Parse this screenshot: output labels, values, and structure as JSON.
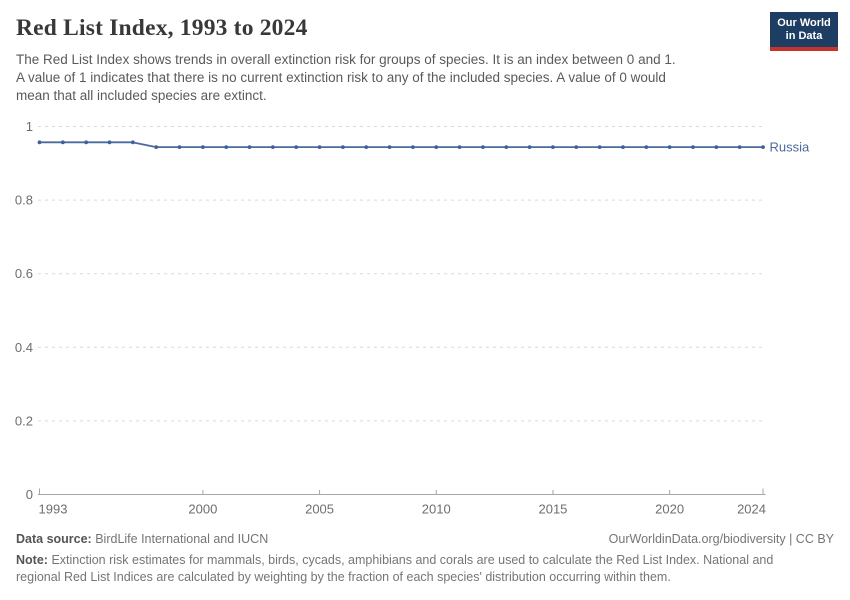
{
  "header": {
    "title": "Red List Index, 1993 to 2024",
    "subtitle_lines": [
      "The Red List Index shows trends in overall extinction risk for groups of species. It is an index between 0 and 1.",
      "A value of 1 indicates that there is no current extinction risk to any of the included species. A value of 0 would",
      "mean that all included species are extinct."
    ],
    "logo": {
      "line1": "Our World",
      "line2": "in Data",
      "bg_color": "#1d3d63",
      "accent_color": "#c5332d"
    }
  },
  "chart_data": {
    "type": "line",
    "title": "Red List Index, 1993 to 2024",
    "xlabel": "",
    "ylabel": "",
    "xlim": [
      1993,
      2024
    ],
    "ylim": [
      0,
      1
    ],
    "grid": "horizontal-dashed",
    "legend_position": "end-of-line-label",
    "x_ticks": [
      1993,
      2000,
      2005,
      2010,
      2015,
      2020,
      2024
    ],
    "y_ticks": [
      0,
      0.2,
      0.4,
      0.6,
      0.8,
      1
    ],
    "x": [
      1993,
      1994,
      1995,
      1996,
      1997,
      1998,
      1999,
      2000,
      2001,
      2002,
      2003,
      2004,
      2005,
      2006,
      2007,
      2008,
      2009,
      2010,
      2011,
      2012,
      2013,
      2014,
      2015,
      2016,
      2017,
      2018,
      2019,
      2020,
      2021,
      2022,
      2023,
      2024
    ],
    "series": [
      {
        "name": "Russia",
        "color": "#4c6a9c",
        "point_color": "#41619b",
        "values": [
          0.957,
          0.957,
          0.957,
          0.957,
          0.957,
          0.944,
          0.944,
          0.944,
          0.944,
          0.944,
          0.944,
          0.944,
          0.944,
          0.944,
          0.944,
          0.944,
          0.944,
          0.944,
          0.944,
          0.944,
          0.944,
          0.944,
          0.944,
          0.944,
          0.944,
          0.944,
          0.944,
          0.944,
          0.944,
          0.944,
          0.944,
          0.944
        ]
      }
    ],
    "colors": {
      "grid": "#d9d9d9",
      "axis": "#a6a6a6",
      "tick_label": "#6e6e6e"
    }
  },
  "footer": {
    "source_label": "Data source:",
    "source_value": "BirdLife International and IUCN",
    "attribution": "OurWorldinData.org/biodiversity | CC BY",
    "note_label": "Note:",
    "note_lines": [
      "Extinction risk estimates for mammals, birds, cycads, amphibians and corals are used to calculate the Red List Index. National and",
      "regional Red List Indices are calculated by weighting by the fraction of each species' distribution occurring within them."
    ]
  }
}
